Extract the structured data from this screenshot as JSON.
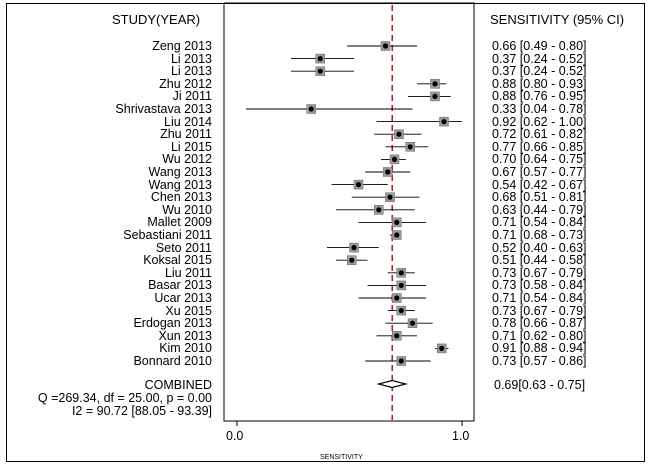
{
  "chart_data": {
    "type": "forest",
    "title": "",
    "left_header": "STUDY(YEAR)",
    "right_header": "SENSITIVITY (95% CI)",
    "xlabel": "SENSITIVITY",
    "xlim": [
      0.0,
      1.0
    ],
    "xticks": [
      "0.0",
      "1.0"
    ],
    "reference_line": 0.69,
    "studies": [
      {
        "label": "Zeng 2013",
        "value": 0.66,
        "lower": 0.49,
        "upper": 0.8,
        "ci_text": "0.66 [0.49 - 0.80]"
      },
      {
        "label": "Li 2013",
        "value": 0.37,
        "lower": 0.24,
        "upper": 0.52,
        "ci_text": "0.37 [0.24 - 0.52]"
      },
      {
        "label": "Li  2013",
        "value": 0.37,
        "lower": 0.24,
        "upper": 0.52,
        "ci_text": "0.37 [0.24 - 0.52]"
      },
      {
        "label": "Zhu 2012",
        "value": 0.88,
        "lower": 0.8,
        "upper": 0.93,
        "ci_text": "0.88 [0.80 - 0.93]"
      },
      {
        "label": "Ji 2011",
        "value": 0.88,
        "lower": 0.76,
        "upper": 0.95,
        "ci_text": "0.88 [0.76 - 0.95]"
      },
      {
        "label": "Shrivastava 2013",
        "value": 0.33,
        "lower": 0.04,
        "upper": 0.78,
        "ci_text": "0.33 [0.04 - 0.78]"
      },
      {
        "label": "Liu 2014",
        "value": 0.92,
        "lower": 0.62,
        "upper": 1.0,
        "ci_text": "0.92 [0.62 - 1.00]"
      },
      {
        "label": "Zhu 2011",
        "value": 0.72,
        "lower": 0.61,
        "upper": 0.82,
        "ci_text": "0.72 [0.61 - 0.82]"
      },
      {
        "label": "Li 2015",
        "value": 0.77,
        "lower": 0.66,
        "upper": 0.85,
        "ci_text": "0.77 [0.66 - 0.85]"
      },
      {
        "label": "Wu 2012",
        "value": 0.7,
        "lower": 0.64,
        "upper": 0.75,
        "ci_text": "0.70 [0.64 - 0.75]"
      },
      {
        "label": "Wang 2013",
        "value": 0.67,
        "lower": 0.57,
        "upper": 0.77,
        "ci_text": "0.67 [0.57 - 0.77]"
      },
      {
        "label": "Wang 2013",
        "value": 0.54,
        "lower": 0.42,
        "upper": 0.67,
        "ci_text": "0.54 [0.42 - 0.67]"
      },
      {
        "label": "Chen 2013",
        "value": 0.68,
        "lower": 0.51,
        "upper": 0.81,
        "ci_text": "0.68 [0.51 - 0.81]"
      },
      {
        "label": "Wu 2010",
        "value": 0.63,
        "lower": 0.44,
        "upper": 0.79,
        "ci_text": "0.63 [0.44 - 0.79]"
      },
      {
        "label": "Mallet 2009",
        "value": 0.71,
        "lower": 0.54,
        "upper": 0.84,
        "ci_text": "0.71 [0.54 - 0.84]"
      },
      {
        "label": "Sebastiani 2011",
        "value": 0.71,
        "lower": 0.68,
        "upper": 0.73,
        "ci_text": "0.71 [0.68 - 0.73]"
      },
      {
        "label": "Seto 2011",
        "value": 0.52,
        "lower": 0.4,
        "upper": 0.63,
        "ci_text": "0.52 [0.40 - 0.63]"
      },
      {
        "label": "Koksal  2015",
        "value": 0.51,
        "lower": 0.44,
        "upper": 0.58,
        "ci_text": "0.51 [0.44 - 0.58]"
      },
      {
        "label": "Liu 2011",
        "value": 0.73,
        "lower": 0.67,
        "upper": 0.79,
        "ci_text": "0.73 [0.67 - 0.79]"
      },
      {
        "label": "Basar 2013",
        "value": 0.73,
        "lower": 0.58,
        "upper": 0.84,
        "ci_text": "0.73 [0.58 - 0.84]"
      },
      {
        "label": "Ucar 2013",
        "value": 0.71,
        "lower": 0.54,
        "upper": 0.84,
        "ci_text": "0.71 [0.54 - 0.84]"
      },
      {
        "label": "Xu 2015",
        "value": 0.73,
        "lower": 0.67,
        "upper": 0.79,
        "ci_text": "0.73 [0.67 - 0.79]"
      },
      {
        "label": "Erdogan 2013",
        "value": 0.78,
        "lower": 0.66,
        "upper": 0.87,
        "ci_text": "0.78 [0.66 - 0.87]"
      },
      {
        "label": "Xun 2013",
        "value": 0.71,
        "lower": 0.62,
        "upper": 0.8,
        "ci_text": "0.71 [0.62 - 0.80]"
      },
      {
        "label": "Kim 2010",
        "value": 0.91,
        "lower": 0.88,
        "upper": 0.94,
        "ci_text": "0.91 [0.88 - 0.94]"
      },
      {
        "label": "Bonnard 2010",
        "value": 0.73,
        "lower": 0.57,
        "upper": 0.86,
        "ci_text": "0.73 [0.57 - 0.86]"
      }
    ],
    "combined": {
      "label": "COMBINED",
      "value": 0.69,
      "lower": 0.63,
      "upper": 0.75,
      "ci_text": "0.69[0.63 - 0.75]"
    },
    "heterogeneity": [
      "Q =269.34, df = 25.00, p =  0.00",
      "I2 = 90.72 [88.05 - 93.39]"
    ],
    "colors": {
      "reference_line": "#b3202a",
      "marker_fill": "#9a9a9a",
      "point": "#000000",
      "line": "#000000"
    }
  }
}
